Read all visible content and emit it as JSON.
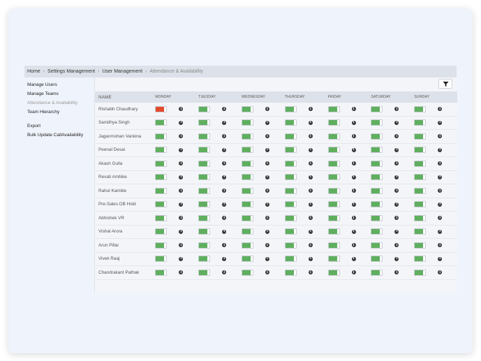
{
  "breadcrumb": [
    "Home",
    "Settings Management",
    "User Management",
    "Attendance & Availability"
  ],
  "sidebar": {
    "items": [
      "Manage Users",
      "Manage Teams",
      "Attendance & Availability",
      "Team Hierarchy"
    ],
    "items2": [
      "Export",
      "Bulk Update CallAvailability"
    ],
    "active_index": 2
  },
  "table": {
    "headers": [
      "NAME",
      "MONDAY",
      "TUESDAY",
      "WEDNESDAY",
      "THURSDAY",
      "FRIDAY",
      "SATURDAY",
      "SUNDAY"
    ],
    "rows": [
      {
        "name": "Rishabh Chaudhary",
        "days": [
          false,
          true,
          true,
          true,
          true,
          true,
          true
        ]
      },
      {
        "name": "Sanidhya Singh",
        "days": [
          true,
          true,
          true,
          true,
          true,
          true,
          true
        ]
      },
      {
        "name": "Jaganmohan Vankina",
        "days": [
          true,
          true,
          true,
          true,
          true,
          true,
          true
        ]
      },
      {
        "name": "Peenal Desai",
        "days": [
          true,
          true,
          true,
          true,
          true,
          true,
          true
        ]
      },
      {
        "name": "Akash Gulla",
        "days": [
          true,
          true,
          true,
          true,
          true,
          true,
          true
        ]
      },
      {
        "name": "Revati Ambike",
        "days": [
          true,
          true,
          true,
          true,
          true,
          true,
          true
        ]
      },
      {
        "name": "Rahul Kamble",
        "days": [
          true,
          true,
          true,
          true,
          true,
          true,
          true
        ]
      },
      {
        "name": "Pre-Sales DB Hold",
        "days": [
          true,
          true,
          true,
          true,
          true,
          true,
          true
        ]
      },
      {
        "name": "Abhishek VR",
        "days": [
          true,
          true,
          true,
          true,
          true,
          true,
          true
        ]
      },
      {
        "name": "Vishal Arora",
        "days": [
          true,
          true,
          true,
          true,
          true,
          true,
          true
        ]
      },
      {
        "name": "Arun Pillai",
        "days": [
          true,
          true,
          true,
          true,
          true,
          true,
          true
        ]
      },
      {
        "name": "Vivek Raaj",
        "days": [
          true,
          true,
          true,
          true,
          true,
          true,
          true
        ]
      },
      {
        "name": "Chandrakant Pathak",
        "days": [
          true,
          true,
          true,
          true,
          true,
          true,
          true
        ]
      }
    ]
  },
  "colors": {
    "on": "#5faf5f",
    "off": "#e24a2e"
  },
  "icons": {
    "filter": "filter-icon",
    "info": "info-icon",
    "separator": "chevron-right-icon"
  }
}
